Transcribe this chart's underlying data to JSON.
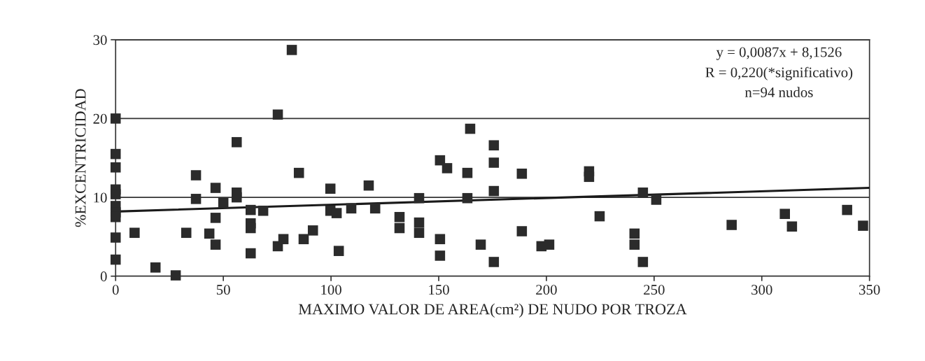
{
  "chart_data": {
    "type": "scatter",
    "xlabel": "MAXIMO VALOR DE AREA(cm²) DE NUDO POR TROZA",
    "ylabel": "%EXCENTRICIDAD",
    "xlim": [
      0,
      350
    ],
    "ylim": [
      0,
      30
    ],
    "xticks": [
      0,
      50,
      100,
      150,
      200,
      250,
      300,
      350
    ],
    "yticks": [
      0,
      10,
      20,
      30
    ],
    "grid": "y",
    "marker": "square",
    "series": [
      {
        "color": "#2b2b2b",
        "x": [
          0,
          0,
          0,
          0,
          0,
          0,
          0,
          0,
          0,
          0,
          8.8,
          18.5,
          27.9,
          32.8,
          37.3,
          37.3,
          43.5,
          46.4,
          46.4,
          46.4,
          50,
          56.2,
          56.2,
          56.2,
          62.7,
          62.7,
          62.7,
          62.7,
          68.5,
          75.3,
          75.3,
          77.9,
          81.8,
          85.1,
          87.3,
          91.6,
          99.7,
          99.7,
          102.6,
          103.6,
          109.4,
          117.5,
          120.5,
          131.8,
          131.8,
          140.9,
          140.9,
          140.9,
          150.6,
          153.9,
          150.6,
          150.6,
          163.3,
          163.3,
          164.6,
          169.5,
          175.6,
          175.6,
          175.6,
          175.6,
          188.6,
          188.6,
          197.7,
          201.3,
          219.8,
          219.8,
          224.7,
          240.9,
          240.9,
          244.8,
          244.8,
          251,
          286,
          310.7,
          314,
          339.6,
          347
        ],
        "values": [
          20,
          15.5,
          13.8,
          11.0,
          10.4,
          8.9,
          8.1,
          7.5,
          4.9,
          2.1,
          5.5,
          1.1,
          0.1,
          5.5,
          12.8,
          9.8,
          5.4,
          4.0,
          7.4,
          11.2,
          9.3,
          17.0,
          10.6,
          10.0,
          8.4,
          6.7,
          6.1,
          2.9,
          8.3,
          20.5,
          3.8,
          4.7,
          28.7,
          13.1,
          4.7,
          5.8,
          11.1,
          8.3,
          8.0,
          3.2,
          8.6,
          11.5,
          8.6,
          7.5,
          6.1,
          9.9,
          6.8,
          5.5,
          14.7,
          13.7,
          4.7,
          2.6,
          13.1,
          9.9,
          18.7,
          4.0,
          16.6,
          14.4,
          10.8,
          1.8,
          13.0,
          5.7,
          3.8,
          4.0,
          13.3,
          12.6,
          7.6,
          5.4,
          4.0,
          1.8,
          10.6,
          9.7,
          6.5,
          7.9,
          6.3,
          8.4,
          6.4
        ]
      },
      {
        "type": "line",
        "color": "#1a1a1a",
        "marker": "none",
        "x": [
          0,
          350
        ],
        "values": [
          8.2,
          11.2
        ]
      }
    ],
    "annotations": [
      "y = 0,0087x + 8,1526",
      "R = 0,220(*significativo)",
      "n=94 nudos"
    ]
  }
}
